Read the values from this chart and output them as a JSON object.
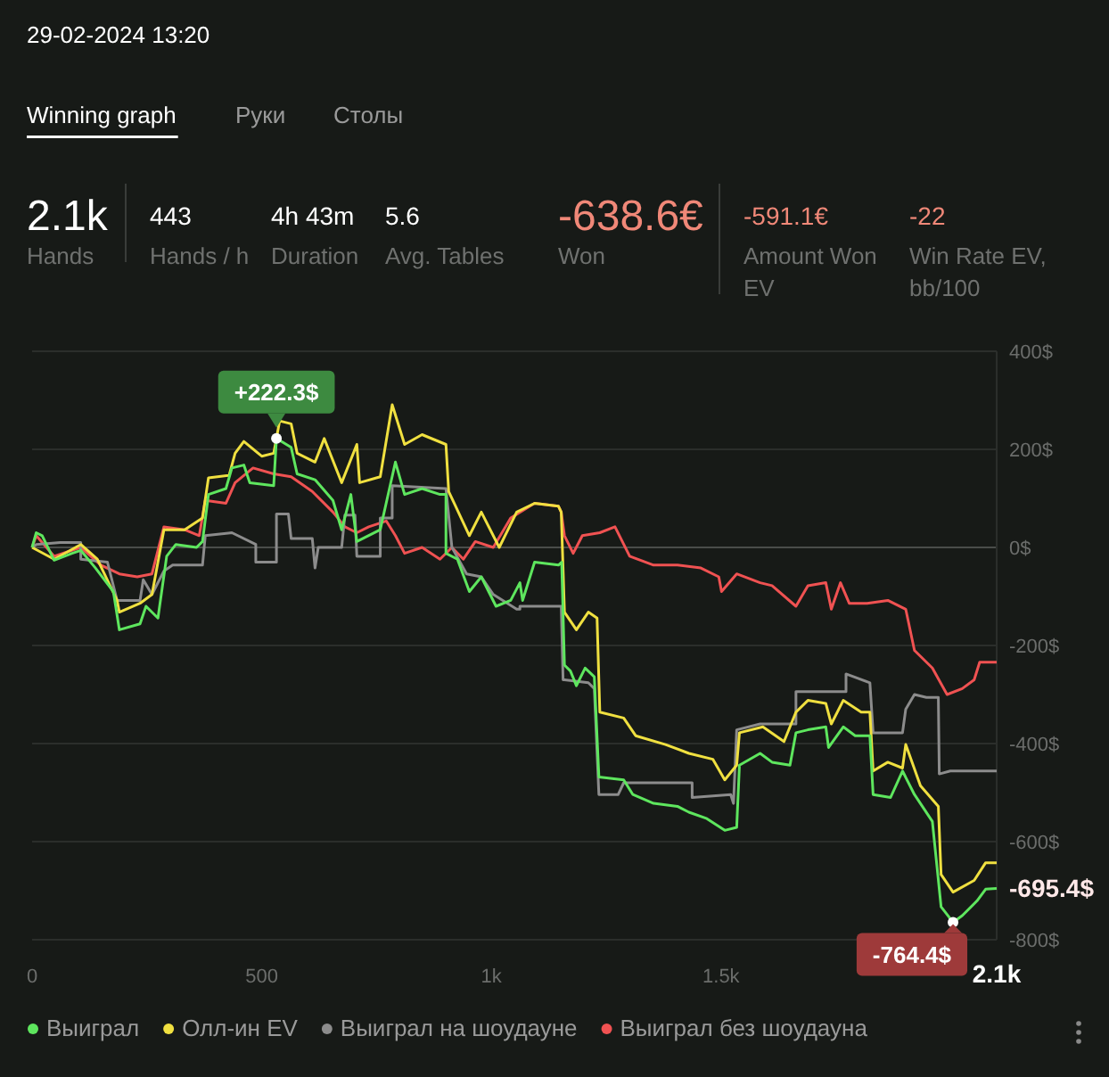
{
  "chart_data": [
    {
      "type": "other",
      "title": "29-02-2024 13:20",
      "annotations": [
        "Winning graph",
        "Руки",
        "Столы",
        "2.1k",
        "Hands",
        "443",
        "Hands / h",
        "4h 43m",
        "Duration",
        "5.6",
        "Avg. Tables",
        "-638.6€",
        "Won",
        "-591.1€",
        "Amount Won EV",
        "-22",
        "Win Rate EV, bb/100"
      ]
    },
    {
      "type": "line",
      "xlim": [
        0,
        2100
      ],
      "ylim": [
        -800,
        400
      ],
      "xticks": [
        0,
        500,
        {
          "value": 1000,
          "label": "1k"
        },
        {
          "value": 1500,
          "label": "1.5k"
        },
        {
          "value": 2100,
          "label": "2.1k"
        }
      ],
      "yticks": [
        {
          "value": -800,
          "label": "-800$"
        },
        {
          "value": -600,
          "label": "-600$"
        },
        {
          "value": -400,
          "label": "-400$"
        },
        {
          "value": -200,
          "label": "-200$"
        },
        {
          "value": 0,
          "label": "0$"
        },
        {
          "value": 200,
          "label": "200$"
        },
        {
          "value": 400,
          "label": "400$"
        }
      ],
      "grid": "y",
      "legend": "bottom",
      "marker": "none",
      "line_style": "solid",
      "annotations": [
        {
          "text": "+222.3$",
          "x": 532,
          "y": 222.3
        },
        {
          "text": "-764.4$",
          "x": 2005,
          "y": -764.4
        },
        {
          "text": "-695.4$",
          "x": 2100,
          "y": -695.4
        }
      ],
      "series": [
        {
          "name": "Выиграл без шоудауна",
          "color": "#f05252",
          "x": [
            0,
            9,
            48,
            106,
            150,
            190,
            229,
            261,
            287,
            332,
            364,
            377,
            422,
            442,
            481,
            526,
            564,
            610,
            655,
            681,
            707,
            733,
            771,
            791,
            811,
            849,
            888,
            914,
            939,
            965,
            1004,
            1042,
            1094,
            1146,
            1152,
            1159,
            1178,
            1198,
            1236,
            1269,
            1301,
            1353,
            1405,
            1456,
            1495,
            1501,
            1534,
            1585,
            1611,
            1663,
            1689,
            1728,
            1740,
            1760,
            1779,
            1818,
            1863,
            1902,
            1921,
            1960,
            1992,
            2025,
            2051,
            2063,
            2100
          ],
          "values": [
            0,
            24,
            -18,
            0,
            -36,
            -54,
            -60,
            -54,
            42,
            36,
            24,
            96,
            90,
            132,
            162,
            150,
            144,
            114,
            72,
            42,
            30,
            42,
            54,
            24,
            -12,
            0,
            -24,
            0,
            -24,
            12,
            0,
            60,
            90,
            84,
            72,
            24,
            -12,
            24,
            30,
            42,
            -18,
            -36,
            -36,
            -42,
            -60,
            -90,
            -54,
            -72,
            -78,
            -120,
            -78,
            -72,
            -126,
            -72,
            -114,
            -114,
            -108,
            -126,
            -210,
            -246,
            -300,
            -288,
            -270,
            -234,
            -234
          ]
        },
        {
          "name": "Выиграл на шоудауне",
          "color": "#8c8c8c",
          "x": [
            0,
            9,
            61,
            106,
            106,
            164,
            185,
            235,
            242,
            261,
            287,
            306,
            371,
            377,
            435,
            487,
            487,
            532,
            532,
            558,
            564,
            610,
            616,
            623,
            674,
            681,
            703,
            707,
            758,
            758,
            784,
            784,
            901,
            914,
            946,
            978,
            1004,
            1055,
            1062,
            1062,
            1152,
            1156,
            1159,
            1211,
            1224,
            1234,
            1276,
            1288,
            1437,
            1437,
            1521,
            1527,
            1534,
            1585,
            1663,
            1663,
            1772,
            1772,
            1824,
            1831,
            1895,
            1902,
            1921,
            1947,
            1973,
            1975,
            1999,
            2100
          ],
          "values": [
            0,
            6,
            10,
            10,
            -24,
            -30,
            -108,
            -108,
            -66,
            -96,
            -48,
            -36,
            -36,
            24,
            30,
            6,
            -30,
            -30,
            68,
            68,
            18,
            18,
            -42,
            0,
            0,
            66,
            66,
            -18,
            -18,
            60,
            60,
            126,
            120,
            0,
            -54,
            -60,
            -96,
            -126,
            -126,
            -120,
            -120,
            -270,
            -270,
            -276,
            -288,
            -504,
            -504,
            -480,
            -480,
            -510,
            -504,
            -522,
            -372,
            -360,
            -360,
            -294,
            -294,
            -258,
            -276,
            -378,
            -378,
            -330,
            -300,
            -306,
            -306,
            -462,
            -456,
            -456
          ]
        },
        {
          "name": "Олл-ин EV",
          "color": "#f0e040",
          "x": [
            0,
            48,
            106,
            142,
            185,
            190,
            235,
            261,
            287,
            332,
            371,
            384,
            429,
            442,
            461,
            500,
            526,
            539,
            564,
            577,
            616,
            636,
            674,
            707,
            713,
            758,
            784,
            811,
            849,
            901,
            907,
            952,
            978,
            1017,
            1055,
            1094,
            1146,
            1152,
            1159,
            1185,
            1211,
            1230,
            1236,
            1288,
            1314,
            1379,
            1430,
            1482,
            1508,
            1534,
            1540,
            1591,
            1637,
            1663,
            1689,
            1728,
            1740,
            1766,
            1805,
            1824,
            1831,
            1863,
            1895,
            1902,
            1934,
            1973,
            1979,
            2005,
            2051,
            2076,
            2100
          ],
          "values": [
            0,
            -24,
            6,
            -24,
            -108,
            -132,
            -114,
            -96,
            36,
            36,
            60,
            142,
            147,
            192,
            216,
            186,
            192,
            258,
            252,
            192,
            174,
            222,
            132,
            210,
            132,
            144,
            291,
            210,
            230,
            210,
            114,
            24,
            72,
            0,
            72,
            90,
            84,
            72,
            -132,
            -168,
            -132,
            -144,
            -336,
            -348,
            -384,
            -402,
            -420,
            -432,
            -474,
            -444,
            -378,
            -366,
            -396,
            -336,
            -312,
            -318,
            -360,
            -312,
            -336,
            -336,
            -456,
            -438,
            -450,
            -402,
            -486,
            -528,
            -667,
            -703,
            -679,
            -643,
            -643
          ]
        },
        {
          "name": "Выиграл",
          "color": "#5ee65e",
          "x": [
            0,
            9,
            22,
            48,
            87,
            106,
            138,
            177,
            190,
            235,
            248,
            274,
            293,
            313,
            358,
            371,
            384,
            422,
            435,
            461,
            474,
            526,
            532,
            564,
            577,
            616,
            655,
            674,
            694,
            707,
            758,
            778,
            791,
            811,
            849,
            888,
            901,
            901,
            926,
            952,
            978,
            1010,
            1042,
            1062,
            1068,
            1094,
            1146,
            1153,
            1159,
            1172,
            1185,
            1204,
            1224,
            1234,
            1288,
            1308,
            1353,
            1405,
            1430,
            1469,
            1508,
            1534,
            1540,
            1585,
            1611,
            1650,
            1663,
            1689,
            1728,
            1734,
            1766,
            1792,
            1824,
            1831,
            1869,
            1895,
            1921,
            1960,
            1979,
            2005,
            2025,
            2057,
            2076,
            2100
          ],
          "values": [
            0,
            30,
            24,
            -26,
            -12,
            -6,
            -42,
            -90,
            -168,
            -156,
            -120,
            -144,
            -18,
            6,
            0,
            12,
            108,
            120,
            162,
            168,
            132,
            126,
            222.3,
            204,
            150,
            138,
            96,
            36,
            108,
            12,
            36,
            120,
            174,
            108,
            120,
            108,
            108,
            -12,
            -24,
            -90,
            -60,
            -120,
            -108,
            -72,
            -108,
            -30,
            -36,
            -30,
            -240,
            -252,
            -282,
            -246,
            -264,
            -468,
            -474,
            -504,
            -522,
            -528,
            -540,
            -553,
            -577,
            -571,
            -444,
            -420,
            -438,
            -444,
            -378,
            -372,
            -366,
            -408,
            -366,
            -384,
            -384,
            -504,
            -510,
            -456,
            -504,
            -559,
            -733,
            -764.4,
            -751,
            -721,
            -697,
            -695.4
          ]
        }
      ]
    }
  ]
}
